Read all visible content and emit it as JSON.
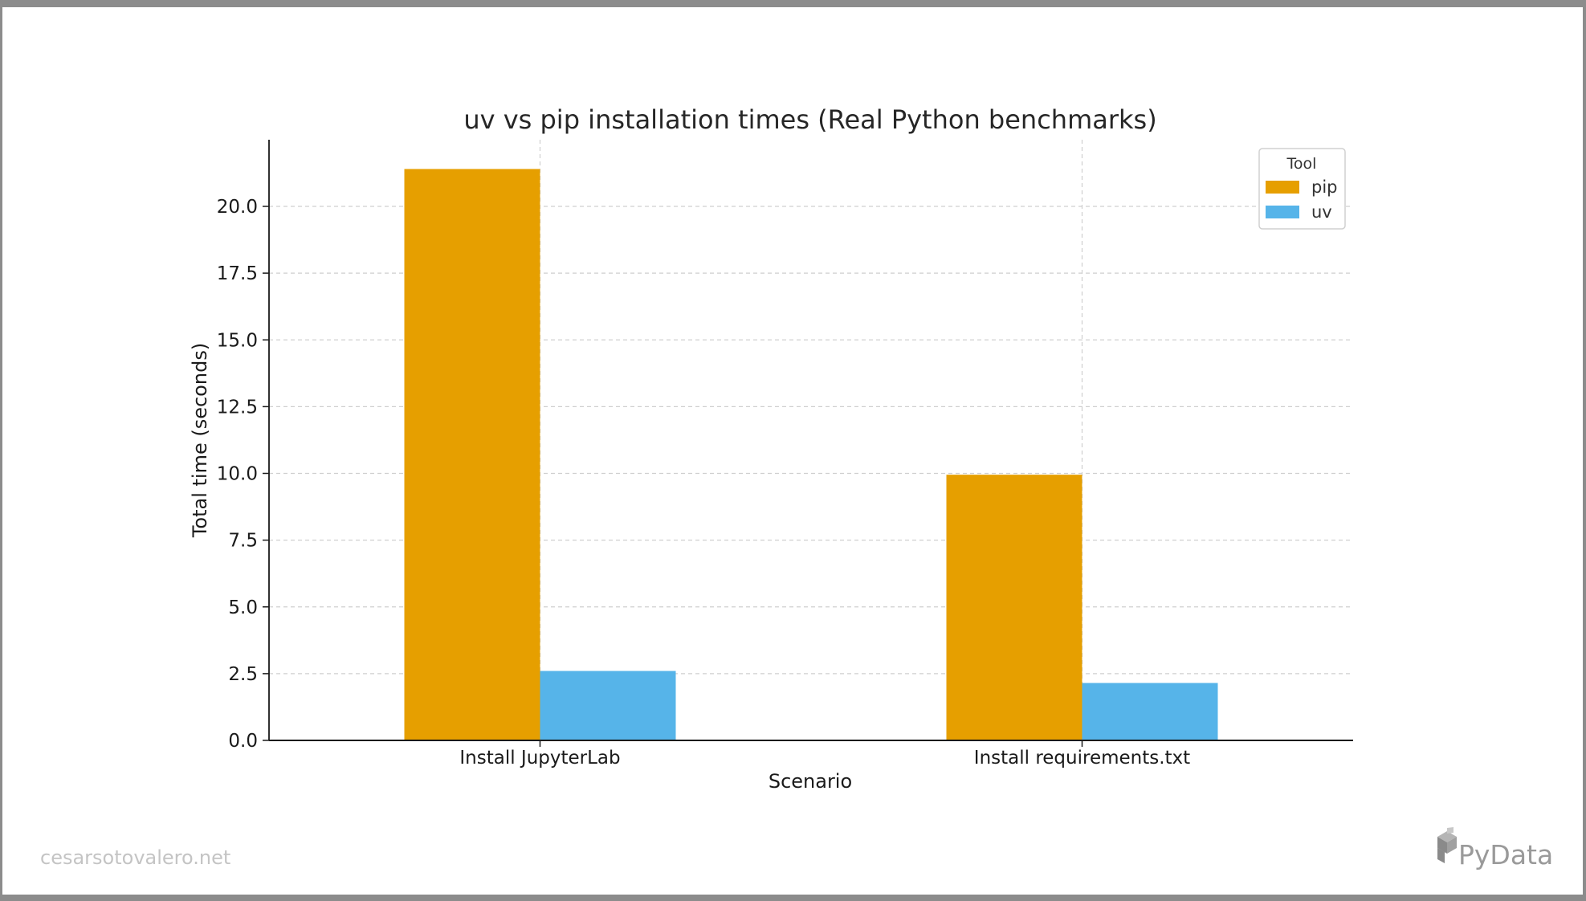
{
  "chart_data": {
    "type": "bar",
    "title": "uv vs pip installation times (Real Python benchmarks)",
    "xlabel": "Scenario",
    "ylabel": "Total time (seconds)",
    "categories": [
      "Install JupyterLab",
      "Install requirements.txt"
    ],
    "series": [
      {
        "name": "pip",
        "values": [
          21.4,
          9.95
        ],
        "color": "#E69F00"
      },
      {
        "name": "uv",
        "values": [
          2.6,
          2.15
        ],
        "color": "#56B4E9"
      }
    ],
    "ylim": [
      0,
      22.5
    ],
    "yticks": [
      "0.0",
      "2.5",
      "5.0",
      "7.5",
      "10.0",
      "12.5",
      "15.0",
      "17.5",
      "20.0"
    ],
    "legend": {
      "title": "Tool",
      "placement": "top-right"
    },
    "grid": true
  },
  "footer": {
    "website": "cesarsotovalero.net",
    "brand": "PyData"
  }
}
